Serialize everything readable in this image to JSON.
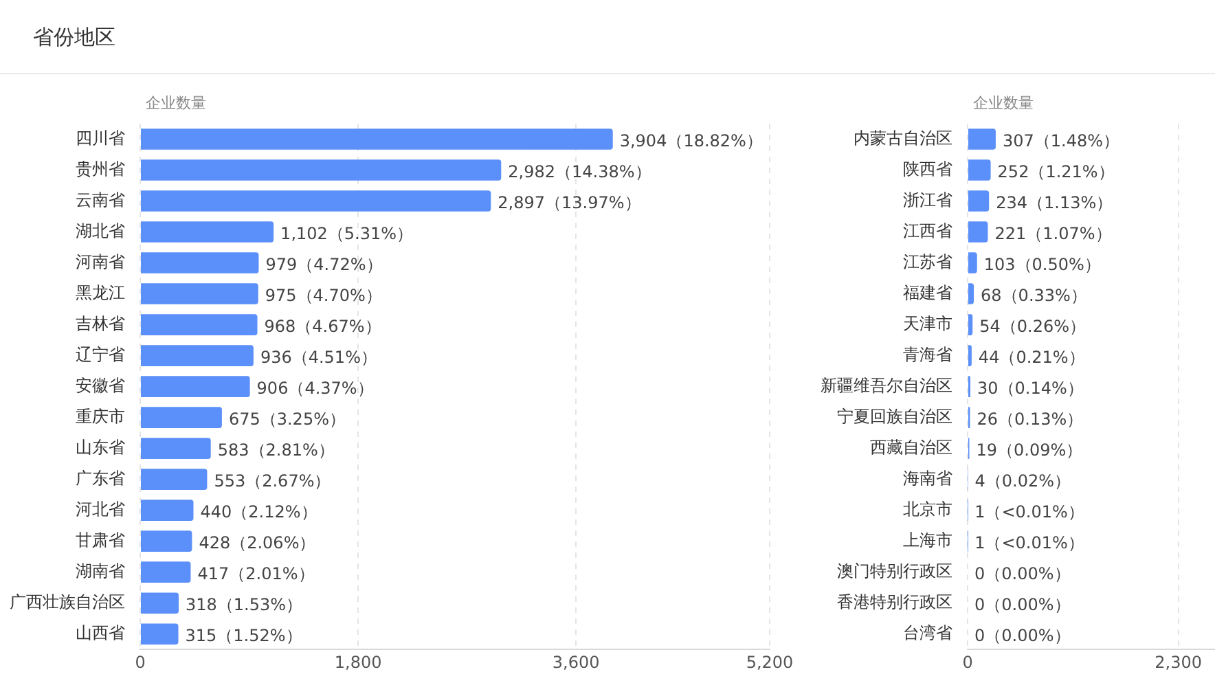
{
  "chart_data": [
    {
      "type": "bar",
      "orientation": "horizontal",
      "title": "省份地区",
      "ylabel": "企业数量",
      "color": "#5b8ff9",
      "grid": "x",
      "xlim": [
        0,
        5200
      ],
      "xticks": [
        0,
        {
          "value": 1800,
          "label": "1,800"
        },
        {
          "value": 3600,
          "label": "3,600"
        },
        {
          "value": 5200,
          "label": "5,200"
        }
      ],
      "categories": [
        "四川省",
        "贵州省",
        "云南省",
        "湖北省",
        "河南省",
        "黑龙江",
        "吉林省",
        "辽宁省",
        "安徽省",
        "重庆市",
        "山东省",
        "广东省",
        "河北省",
        "甘肃省",
        "湖南省",
        "广西壮族自治区",
        "山西省"
      ],
      "values": [
        3904,
        2982,
        2897,
        1102,
        979,
        975,
        968,
        936,
        906,
        675,
        583,
        553,
        440,
        428,
        417,
        318,
        315
      ],
      "value_labels": [
        "3,904（18.82%）",
        "2,982（14.38%）",
        "2,897（13.97%）",
        "1,102（5.31%）",
        "979（4.72%）",
        "975（4.70%）",
        "968（4.67%）",
        "936（4.51%）",
        "906（4.37%）",
        "675（3.25%）",
        "583（2.81%）",
        "553（2.67%）",
        "440（2.12%）",
        "428（2.06%）",
        "417（2.01%）",
        "318（1.53%）",
        "315（1.52%）"
      ]
    },
    {
      "type": "bar",
      "orientation": "horizontal",
      "ylabel": "企业数量",
      "color": "#5b8ff9",
      "grid": "x",
      "xlim": [
        0,
        2700
      ],
      "xticks": [
        0,
        {
          "value": 2300,
          "label": "2,300"
        }
      ],
      "categories": [
        "内蒙古自治区",
        "陕西省",
        "浙江省",
        "江西省",
        "江苏省",
        "福建省",
        "天津市",
        "青海省",
        "新疆维吾尔自治区",
        "宁夏回族自治区",
        "西藏自治区",
        "海南省",
        "北京市",
        "上海市",
        "澳门特别行政区",
        "香港特别行政区",
        "台湾省"
      ],
      "values": [
        307,
        252,
        234,
        221,
        103,
        68,
        54,
        44,
        30,
        26,
        19,
        4,
        1,
        1,
        0,
        0,
        0
      ],
      "value_labels": [
        "307（1.48%）",
        "252（1.21%）",
        "234（1.13%）",
        "221（1.07%）",
        "103（0.50%）",
        "68（0.33%）",
        "54（0.26%）",
        "44（0.21%）",
        "30（0.14%）",
        "26（0.13%）",
        "19（0.09%）",
        "4（0.02%）",
        "1（<0.01%）",
        "1（<0.01%）",
        "0（0.00%）",
        "0（0.00%）",
        "0（0.00%）"
      ]
    }
  ]
}
